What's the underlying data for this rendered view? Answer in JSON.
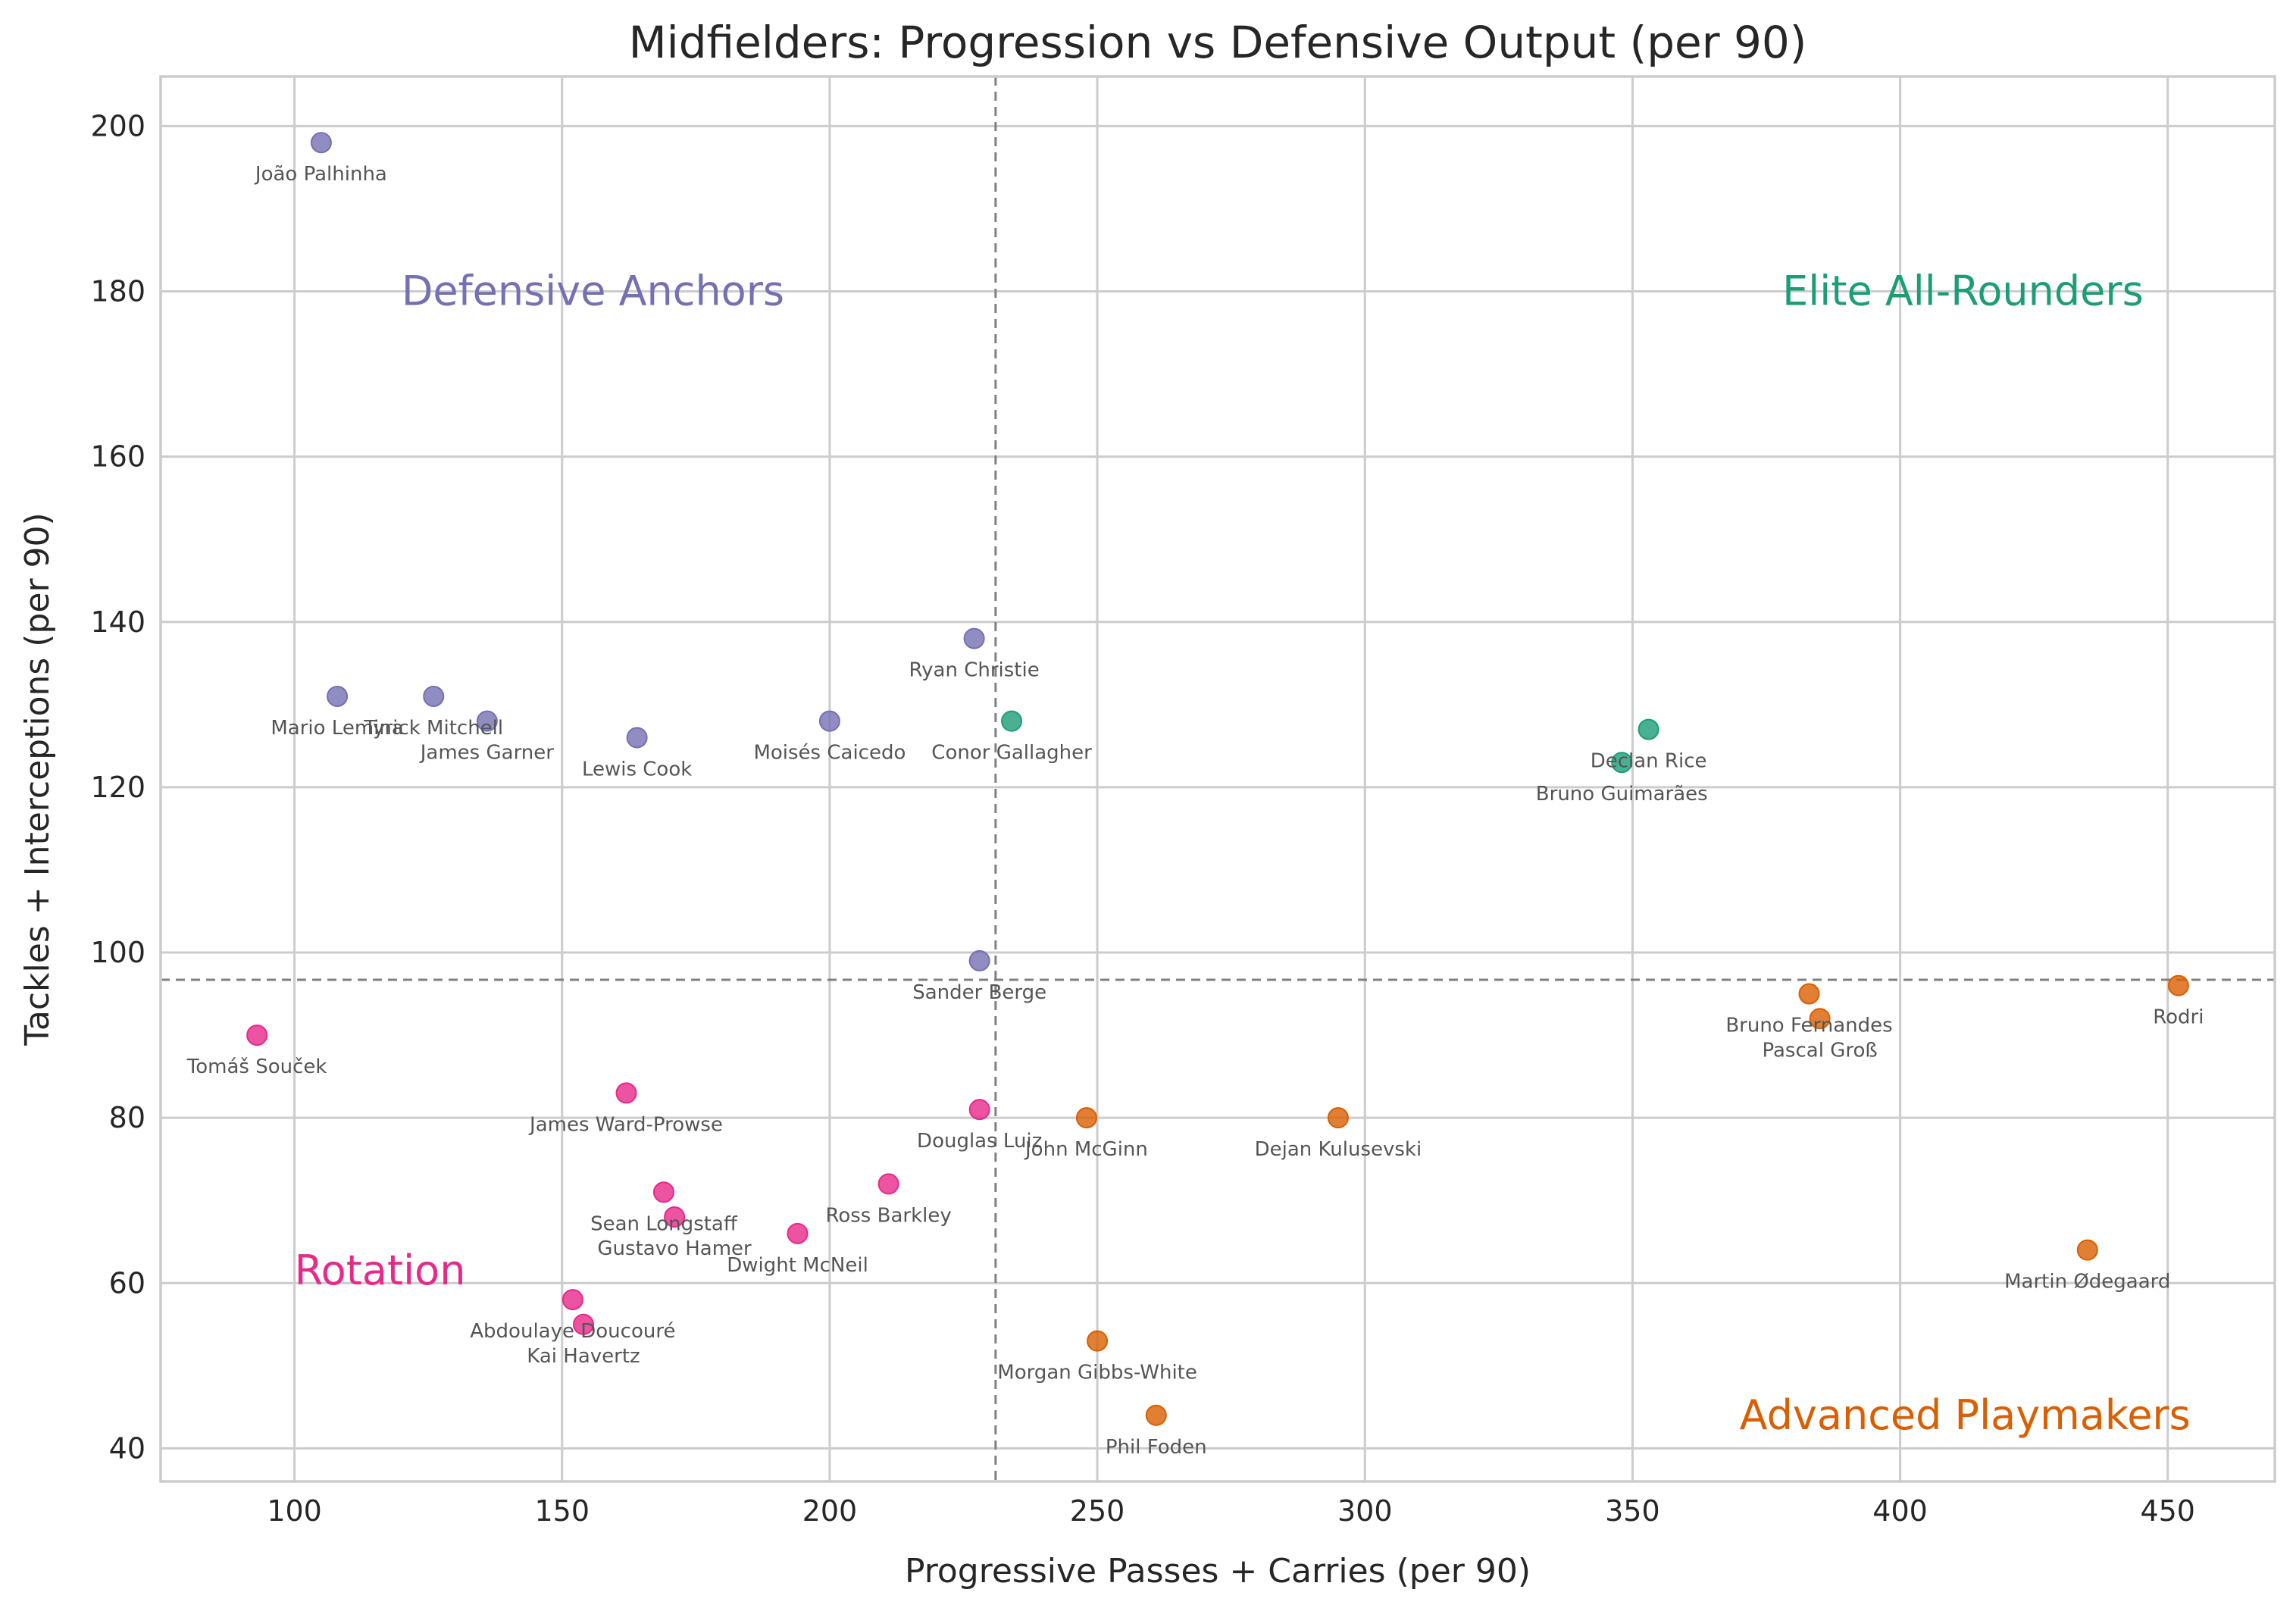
{
  "chart_data": {
    "type": "scatter",
    "title": "Midfielders: Progression vs Defensive Output (per 90)",
    "xlabel": "Progressive Passes + Carries (per 90)",
    "ylabel": "Tackles + Interceptions (per 90)",
    "xlim": [
      75,
      470
    ],
    "ylim": [
      36,
      206
    ],
    "xticks": [
      "100",
      "150",
      "200",
      "250",
      "300",
      "350",
      "400",
      "450"
    ],
    "yticks": [
      "40",
      "60",
      "80",
      "100",
      "120",
      "140",
      "160",
      "180",
      "200"
    ],
    "grid": true,
    "reference_lines": {
      "x": 231,
      "y": 96.7
    },
    "colors": {
      "Defensive Anchors": "#7570b3",
      "Elite All-Rounders": "#1b9e77",
      "Advanced Playmakers": "#d95f02",
      "Rotation": "#e7298a"
    },
    "quadrant_labels": [
      {
        "text": "Defensive Anchors",
        "group": "Defensive Anchors",
        "x": 120,
        "y": 180
      },
      {
        "text": "Elite All-Rounders",
        "group": "Elite All-Rounders",
        "x": 378,
        "y": 180
      },
      {
        "text": "Rotation",
        "group": "Rotation",
        "x": 100,
        "y": 61.5
      },
      {
        "text": "Advanced Playmakers",
        "group": "Advanced Playmakers",
        "x": 370,
        "y": 44
      }
    ],
    "points": [
      {
        "name": "João Palhinha",
        "x": 105,
        "y": 198,
        "group": "Defensive Anchors"
      },
      {
        "name": "Mario Lemina",
        "x": 108,
        "y": 131,
        "group": "Defensive Anchors"
      },
      {
        "name": "Tyrick Mitchell",
        "x": 126,
        "y": 131,
        "group": "Defensive Anchors"
      },
      {
        "name": "James Garner",
        "x": 136,
        "y": 128,
        "group": "Defensive Anchors"
      },
      {
        "name": "Lewis Cook",
        "x": 164,
        "y": 126,
        "group": "Defensive Anchors"
      },
      {
        "name": "Moisés Caicedo",
        "x": 200,
        "y": 128,
        "group": "Defensive Anchors"
      },
      {
        "name": "Ryan Christie",
        "x": 227,
        "y": 138,
        "group": "Defensive Anchors"
      },
      {
        "name": "Sander Berge",
        "x": 228,
        "y": 99,
        "group": "Defensive Anchors"
      },
      {
        "name": "Conor Gallagher",
        "x": 234,
        "y": 128,
        "group": "Elite All-Rounders"
      },
      {
        "name": "Declan Rice",
        "x": 353,
        "y": 127,
        "group": "Elite All-Rounders"
      },
      {
        "name": "Bruno Guimarães",
        "x": 348,
        "y": 123,
        "group": "Elite All-Rounders"
      },
      {
        "name": "Rodri",
        "x": 452,
        "y": 96,
        "group": "Advanced Playmakers"
      },
      {
        "name": "Bruno Fernandes",
        "x": 383,
        "y": 95,
        "group": "Advanced Playmakers"
      },
      {
        "name": "Pascal Groß",
        "x": 385,
        "y": 92,
        "group": "Advanced Playmakers"
      },
      {
        "name": "John McGinn",
        "x": 248,
        "y": 80,
        "group": "Advanced Playmakers"
      },
      {
        "name": "Dejan Kulusevski",
        "x": 295,
        "y": 80,
        "group": "Advanced Playmakers"
      },
      {
        "name": "Martin Ødegaard",
        "x": 435,
        "y": 64,
        "group": "Advanced Playmakers"
      },
      {
        "name": "Morgan Gibbs-White",
        "x": 250,
        "y": 53,
        "group": "Advanced Playmakers"
      },
      {
        "name": "Phil Foden",
        "x": 261,
        "y": 44,
        "group": "Advanced Playmakers"
      },
      {
        "name": "Tomáš Souček",
        "x": 93,
        "y": 90,
        "group": "Rotation"
      },
      {
        "name": "James Ward-Prowse",
        "x": 162,
        "y": 83,
        "group": "Rotation"
      },
      {
        "name": "Douglas Luiz",
        "x": 228,
        "y": 81,
        "group": "Rotation"
      },
      {
        "name": "Ross Barkley",
        "x": 211,
        "y": 72,
        "group": "Rotation"
      },
      {
        "name": "Sean Longstaff",
        "x": 169,
        "y": 71,
        "group": "Rotation"
      },
      {
        "name": "Gustavo Hamer",
        "x": 171,
        "y": 68,
        "group": "Rotation"
      },
      {
        "name": "Dwight McNeil",
        "x": 194,
        "y": 66,
        "group": "Rotation"
      },
      {
        "name": "Abdoulaye Doucouré",
        "x": 152,
        "y": 58,
        "group": "Rotation"
      },
      {
        "name": "Kai Havertz",
        "x": 154,
        "y": 55,
        "group": "Rotation"
      }
    ]
  }
}
